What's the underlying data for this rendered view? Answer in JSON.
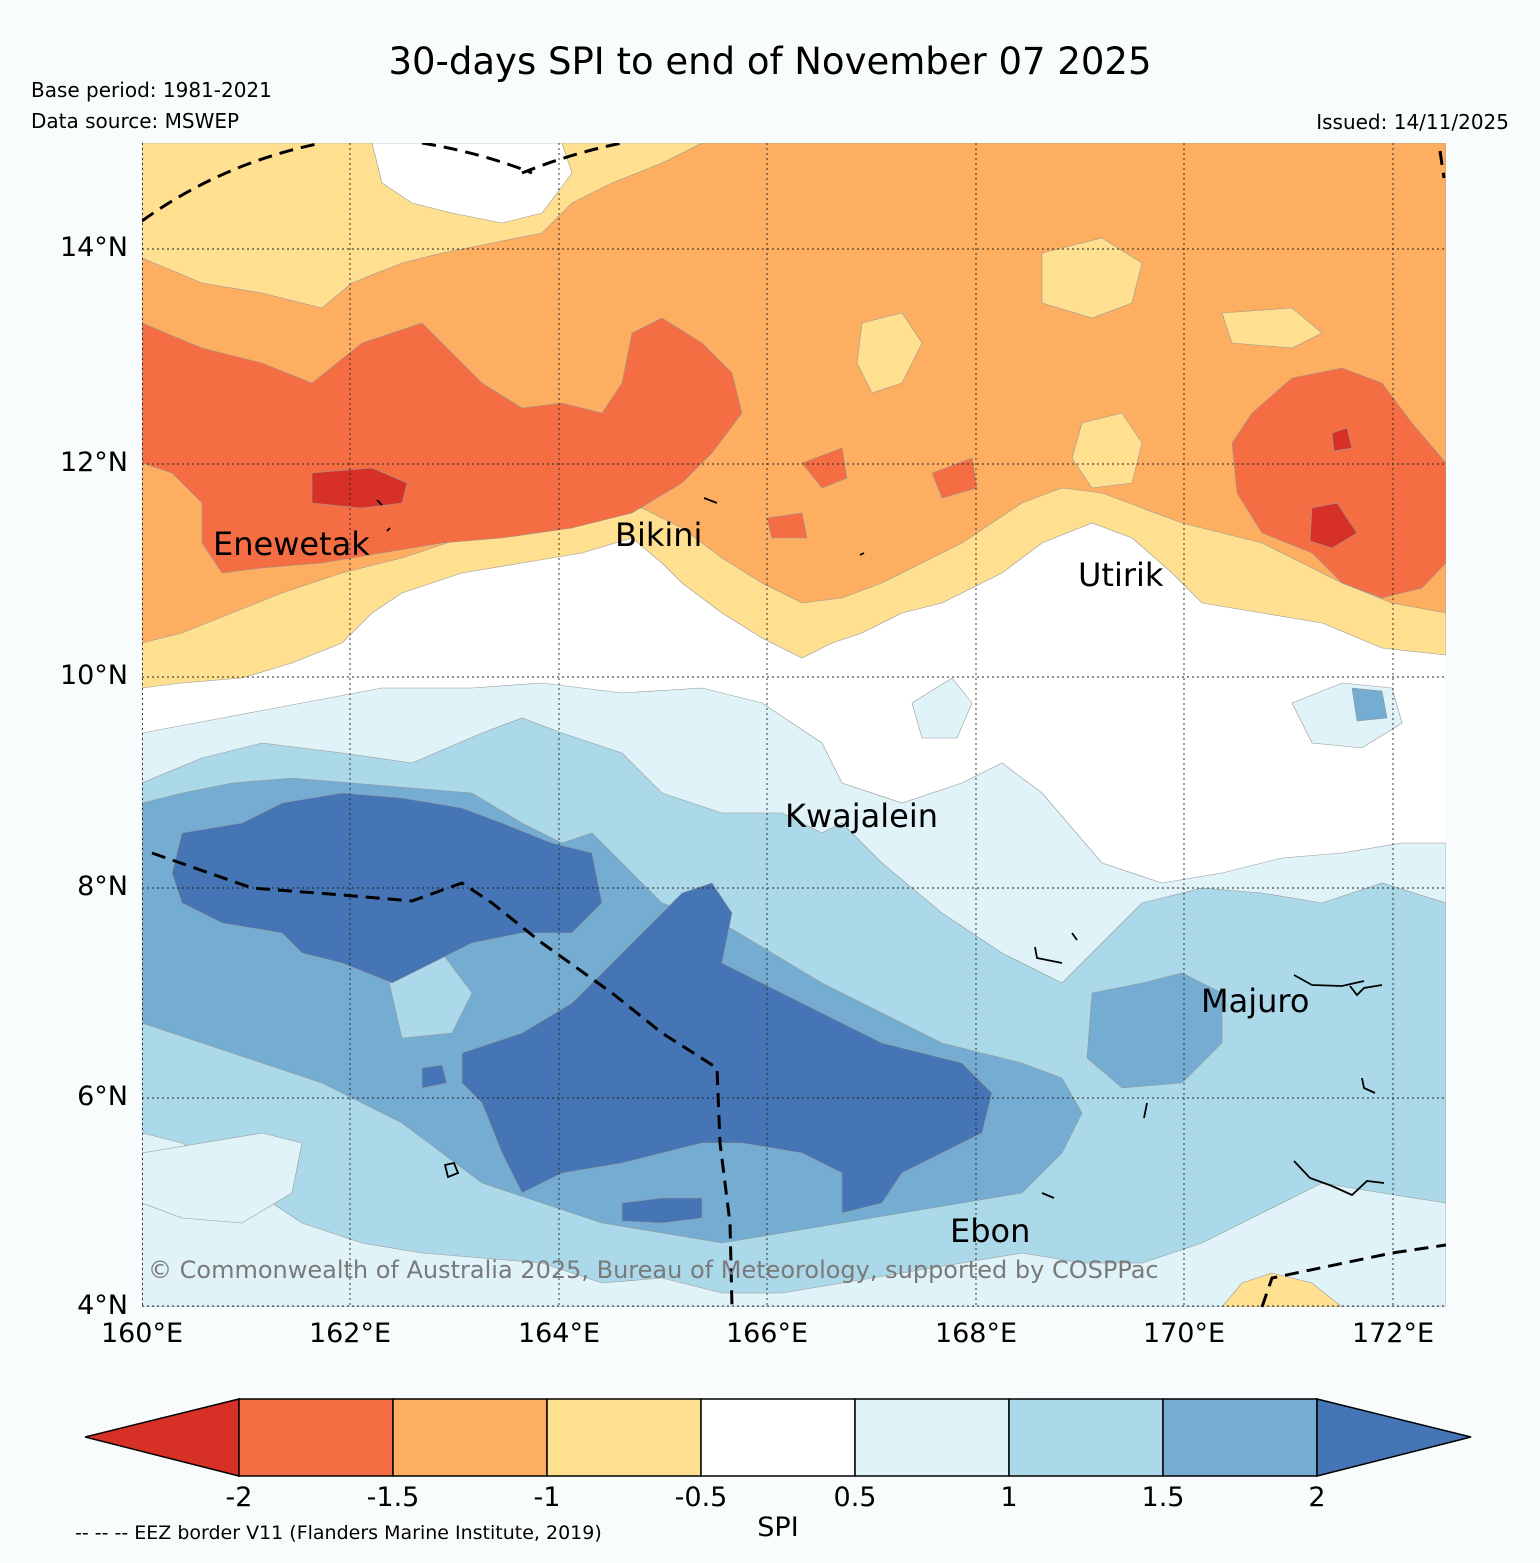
{
  "title": "30-days SPI to end of November 07 2025",
  "meta": {
    "base_period": "Base period: 1981-2021",
    "data_source": "Data source: MSWEP",
    "issued": "Issued: 14/11/2025"
  },
  "axes": {
    "lat_labels": [
      "14°N",
      "12°N",
      "10°N",
      "8°N",
      "6°N",
      "4°N"
    ],
    "lon_labels": [
      "160°E",
      "162°E",
      "164°E",
      "166°E",
      "168°E",
      "170°E",
      "172°E"
    ]
  },
  "places": {
    "enewetak": "Enewetak",
    "bikini": "Bikini",
    "utirik": "Utirik",
    "kwajalein": "Kwajalein",
    "majuro": "Majuro",
    "ebon": "Ebon"
  },
  "copyright": "© Commonwealth of Australia 2025, Bureau of Meteorology, supported by COSPPac",
  "colorbar": {
    "label": "SPI",
    "ticks": [
      "-2",
      "-1.5",
      "-1",
      "-0.5",
      "0.5",
      "1",
      "1.5",
      "2"
    ],
    "colors": [
      "#d73027",
      "#f46d43",
      "#fdae61",
      "#fee090",
      "#ffffff",
      "#e0f3f8",
      "#abd9e9",
      "#74add1",
      "#4575b4"
    ]
  },
  "footnote": "-- -- -- EEZ border V11 (Flanders Marine Institute, 2019)"
}
